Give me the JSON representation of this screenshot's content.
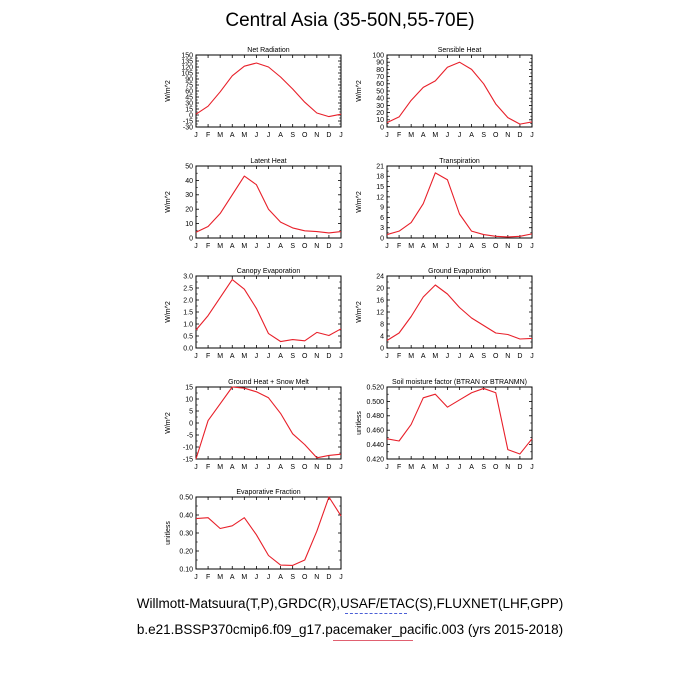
{
  "page": {
    "title": "Central Asia (35-50N,55-70E)",
    "caption_line1": "Willmott-Matsuura(T,P),GRDC(R),USAF/ETAC(S),FLUXNET(LHF,GPP)",
    "caption_line2": "b.e21.BSSP370cmip6.f09_g17.pacemaker_pacific.003 (yrs 2015-2018)",
    "line_color": "#e8202a"
  },
  "chart_data": [
    {
      "type": "line",
      "title": "Net Radiation",
      "ylabel": "W/m^2",
      "x": [
        "J",
        "F",
        "M",
        "A",
        "M",
        "J",
        "J",
        "A",
        "S",
        "O",
        "N",
        "D",
        "J"
      ],
      "ylim": [
        -30,
        150
      ],
      "yticks": [
        -30,
        -15,
        0,
        15,
        30,
        45,
        60,
        75,
        90,
        105,
        120,
        135,
        150
      ],
      "ytick_labels": [
        "-30",
        "-15",
        "0",
        "15",
        "30",
        "45",
        "60",
        "75",
        "90",
        "105",
        "120",
        "135",
        "150"
      ],
      "series": [
        {
          "values": [
            2,
            22,
            58,
            98,
            122,
            130,
            120,
            95,
            65,
            32,
            5,
            -4,
            2
          ]
        }
      ]
    },
    {
      "type": "line",
      "title": "Sensible Heat",
      "ylabel": "W/m^2",
      "x": [
        "J",
        "F",
        "M",
        "A",
        "M",
        "J",
        "J",
        "A",
        "S",
        "O",
        "N",
        "D",
        "J"
      ],
      "ylim": [
        0,
        100
      ],
      "yticks": [
        0,
        10,
        20,
        30,
        40,
        50,
        60,
        70,
        80,
        90,
        100
      ],
      "ytick_labels": [
        "0",
        "10",
        "20",
        "30",
        "40",
        "50",
        "60",
        "70",
        "80",
        "90",
        "100"
      ],
      "series": [
        {
          "values": [
            6,
            14,
            37,
            55,
            64,
            83,
            90,
            80,
            60,
            32,
            13,
            4,
            7
          ]
        }
      ]
    },
    {
      "type": "line",
      "title": "Latent Heat",
      "ylabel": "W/m^2",
      "x": [
        "J",
        "F",
        "M",
        "A",
        "M",
        "J",
        "J",
        "A",
        "S",
        "O",
        "N",
        "D",
        "J"
      ],
      "ylim": [
        0,
        50
      ],
      "yticks": [
        0,
        10,
        20,
        30,
        40,
        50
      ],
      "ytick_labels": [
        "0",
        "10",
        "20",
        "30",
        "40",
        "50"
      ],
      "series": [
        {
          "values": [
            4,
            8,
            17,
            30,
            43,
            37,
            20,
            11,
            7,
            5,
            4.5,
            3.5,
            4.5
          ]
        }
      ]
    },
    {
      "type": "line",
      "title": "Transpiration",
      "ylabel": "W/m^2",
      "x": [
        "J",
        "F",
        "M",
        "A",
        "M",
        "J",
        "J",
        "A",
        "S",
        "O",
        "N",
        "D",
        "J"
      ],
      "ylim": [
        0,
        21
      ],
      "yticks": [
        0,
        3,
        6,
        9,
        12,
        15,
        18,
        21
      ],
      "ytick_labels": [
        "0",
        "3",
        "6",
        "9",
        "12",
        "15",
        "18",
        "21"
      ],
      "series": [
        {
          "values": [
            1,
            2,
            4.5,
            10,
            19,
            17,
            7,
            2,
            1,
            0.5,
            0.3,
            0.5,
            1.2
          ]
        }
      ]
    },
    {
      "type": "line",
      "title": "Canopy Evaporation",
      "ylabel": "W/m^2",
      "x": [
        "J",
        "F",
        "M",
        "A",
        "M",
        "J",
        "J",
        "A",
        "S",
        "O",
        "N",
        "D",
        "J"
      ],
      "ylim": [
        0,
        3.0
      ],
      "yticks": [
        0,
        0.5,
        1.0,
        1.5,
        2.0,
        2.5,
        3.0
      ],
      "ytick_labels": [
        "0.0",
        "0.5",
        "1.0",
        "1.5",
        "2.0",
        "2.5",
        "3.0"
      ],
      "series": [
        {
          "values": [
            0.75,
            1.35,
            2.1,
            2.85,
            2.45,
            1.65,
            0.6,
            0.27,
            0.35,
            0.3,
            0.65,
            0.52,
            0.8
          ]
        }
      ]
    },
    {
      "type": "line",
      "title": "Ground Evaporation",
      "ylabel": "W/m^2",
      "x": [
        "J",
        "F",
        "M",
        "A",
        "M",
        "J",
        "J",
        "A",
        "S",
        "O",
        "N",
        "D",
        "J"
      ],
      "ylim": [
        0,
        24
      ],
      "yticks": [
        0,
        4,
        8,
        12,
        16,
        20,
        24
      ],
      "ytick_labels": [
        "0",
        "4",
        "8",
        "12",
        "16",
        "20",
        "24"
      ],
      "series": [
        {
          "values": [
            2.5,
            5,
            10.5,
            17,
            21,
            18,
            13.5,
            10,
            7.5,
            5,
            4.5,
            3,
            3.2
          ]
        }
      ]
    },
    {
      "type": "line",
      "title": "Ground Heat + Snow Melt",
      "ylabel": "W/m^2",
      "x": [
        "J",
        "F",
        "M",
        "A",
        "M",
        "J",
        "J",
        "A",
        "S",
        "O",
        "N",
        "D",
        "J"
      ],
      "ylim": [
        -15,
        15
      ],
      "yticks": [
        -15,
        -10,
        -5,
        0,
        5,
        10,
        15
      ],
      "ytick_labels": [
        "-15",
        "-10",
        "-5",
        "0",
        "5",
        "10",
        "15"
      ],
      "series": [
        {
          "values": [
            -15,
            1,
            8,
            15,
            14.5,
            13,
            10.5,
            4,
            -4.5,
            -9,
            -14.5,
            -13.5,
            -13
          ]
        }
      ]
    },
    {
      "type": "line",
      "title": "Soil moisture factor (BTRAN or BTRANMN)",
      "ylabel": "unitless",
      "x": [
        "J",
        "F",
        "M",
        "A",
        "M",
        "J",
        "J",
        "A",
        "S",
        "O",
        "N",
        "D",
        "J"
      ],
      "ylim": [
        0.42,
        0.52
      ],
      "yticks": [
        0.42,
        0.44,
        0.46,
        0.48,
        0.5,
        0.52
      ],
      "ytick_labels": [
        "0.420",
        "0.440",
        "0.460",
        "0.480",
        "0.500",
        "0.520"
      ],
      "series": [
        {
          "values": [
            0.448,
            0.445,
            0.468,
            0.505,
            0.51,
            0.492,
            0.502,
            0.512,
            0.518,
            0.512,
            0.433,
            0.427,
            0.448
          ]
        }
      ]
    },
    {
      "type": "line",
      "title": "Evaporative Fraction",
      "ylabel": "unitless",
      "x": [
        "J",
        "F",
        "M",
        "A",
        "M",
        "J",
        "J",
        "A",
        "S",
        "O",
        "N",
        "D",
        "J"
      ],
      "ylim": [
        0.1,
        0.5
      ],
      "yticks": [
        0.1,
        0.2,
        0.3,
        0.4,
        0.5
      ],
      "ytick_labels": [
        "0.10",
        "0.20",
        "0.30",
        "0.40",
        "0.50"
      ],
      "series": [
        {
          "values": [
            0.38,
            0.385,
            0.325,
            0.34,
            0.385,
            0.29,
            0.175,
            0.122,
            0.12,
            0.15,
            0.31,
            0.5,
            0.395
          ]
        }
      ]
    }
  ]
}
